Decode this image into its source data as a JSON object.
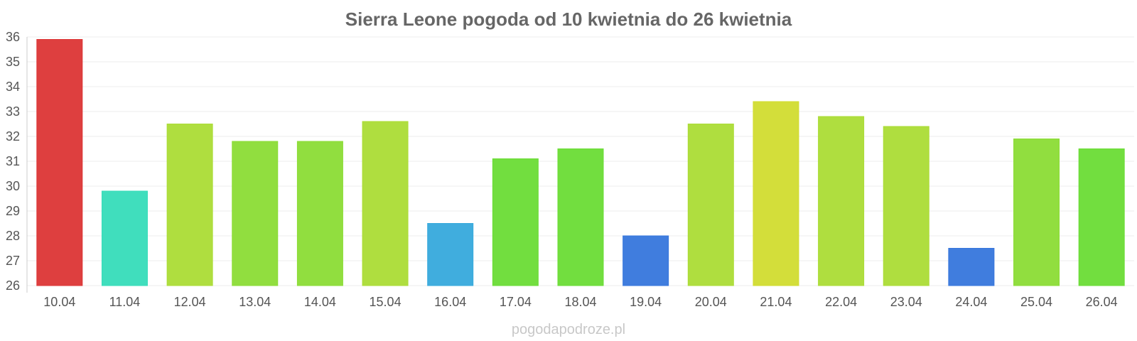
{
  "chart_data": {
    "type": "bar",
    "title": "Sierra Leone pogoda od 10 kwietnia do 26 kwietnia",
    "categories": [
      "10.04",
      "11.04",
      "12.04",
      "13.04",
      "14.04",
      "15.04",
      "16.04",
      "17.04",
      "18.04",
      "19.04",
      "20.04",
      "21.04",
      "22.04",
      "23.04",
      "24.04",
      "25.04",
      "26.04"
    ],
    "values": [
      35.9,
      29.8,
      32.5,
      31.8,
      31.8,
      32.6,
      28.5,
      31.1,
      31.5,
      28.0,
      32.5,
      33.4,
      32.8,
      32.4,
      27.5,
      31.9,
      31.5
    ],
    "colors": [
      "#dc3535",
      "#36dcb9",
      "#abdc35",
      "#8bdc35",
      "#8bdc35",
      "#abdc35",
      "#36a9dc",
      "#6adc35",
      "#6adc35",
      "#3676dc",
      "#abdc35",
      "#d1dc2f",
      "#abdc35",
      "#abdc35",
      "#3676dc",
      "#8bdc35",
      "#6adc35"
    ],
    "ylim": [
      26,
      36
    ],
    "yticks": [
      26,
      27,
      28,
      29,
      30,
      31,
      32,
      33,
      34,
      35,
      36
    ],
    "grid": true,
    "xlabel": "",
    "ylabel": ""
  },
  "watermark": "pogodapodroze.pl"
}
